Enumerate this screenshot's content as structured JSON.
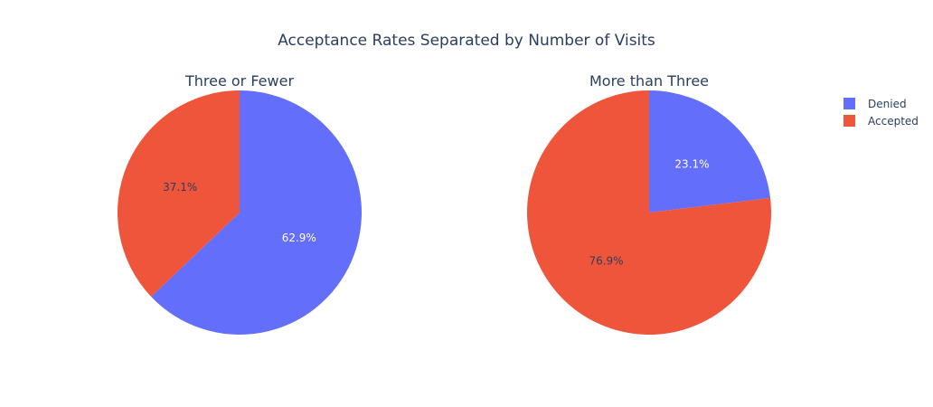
{
  "title": "Acceptance Rates Separated by Number of Visits",
  "legend": {
    "items": [
      {
        "label": "Denied",
        "color": "#636efa"
      },
      {
        "label": "Accepted",
        "color": "#ef553b"
      }
    ]
  },
  "chart_data": [
    {
      "type": "pie",
      "title": "Three or Fewer",
      "labels": [
        "Denied",
        "Accepted"
      ],
      "values": [
        62.9,
        37.1
      ],
      "value_labels": [
        "62.9%",
        "37.1%"
      ],
      "colors": [
        "#636efa",
        "#ef553b"
      ],
      "direction": "clockwise",
      "start": "12 o'clock",
      "legend_placement": "right"
    },
    {
      "type": "pie",
      "title": "More than Three",
      "labels": [
        "Denied",
        "Accepted"
      ],
      "values": [
        23.1,
        76.9
      ],
      "value_labels": [
        "23.1%",
        "76.9%"
      ],
      "colors": [
        "#636efa",
        "#ef553b"
      ],
      "direction": "clockwise",
      "start": "12 o'clock",
      "legend_placement": "right"
    }
  ]
}
